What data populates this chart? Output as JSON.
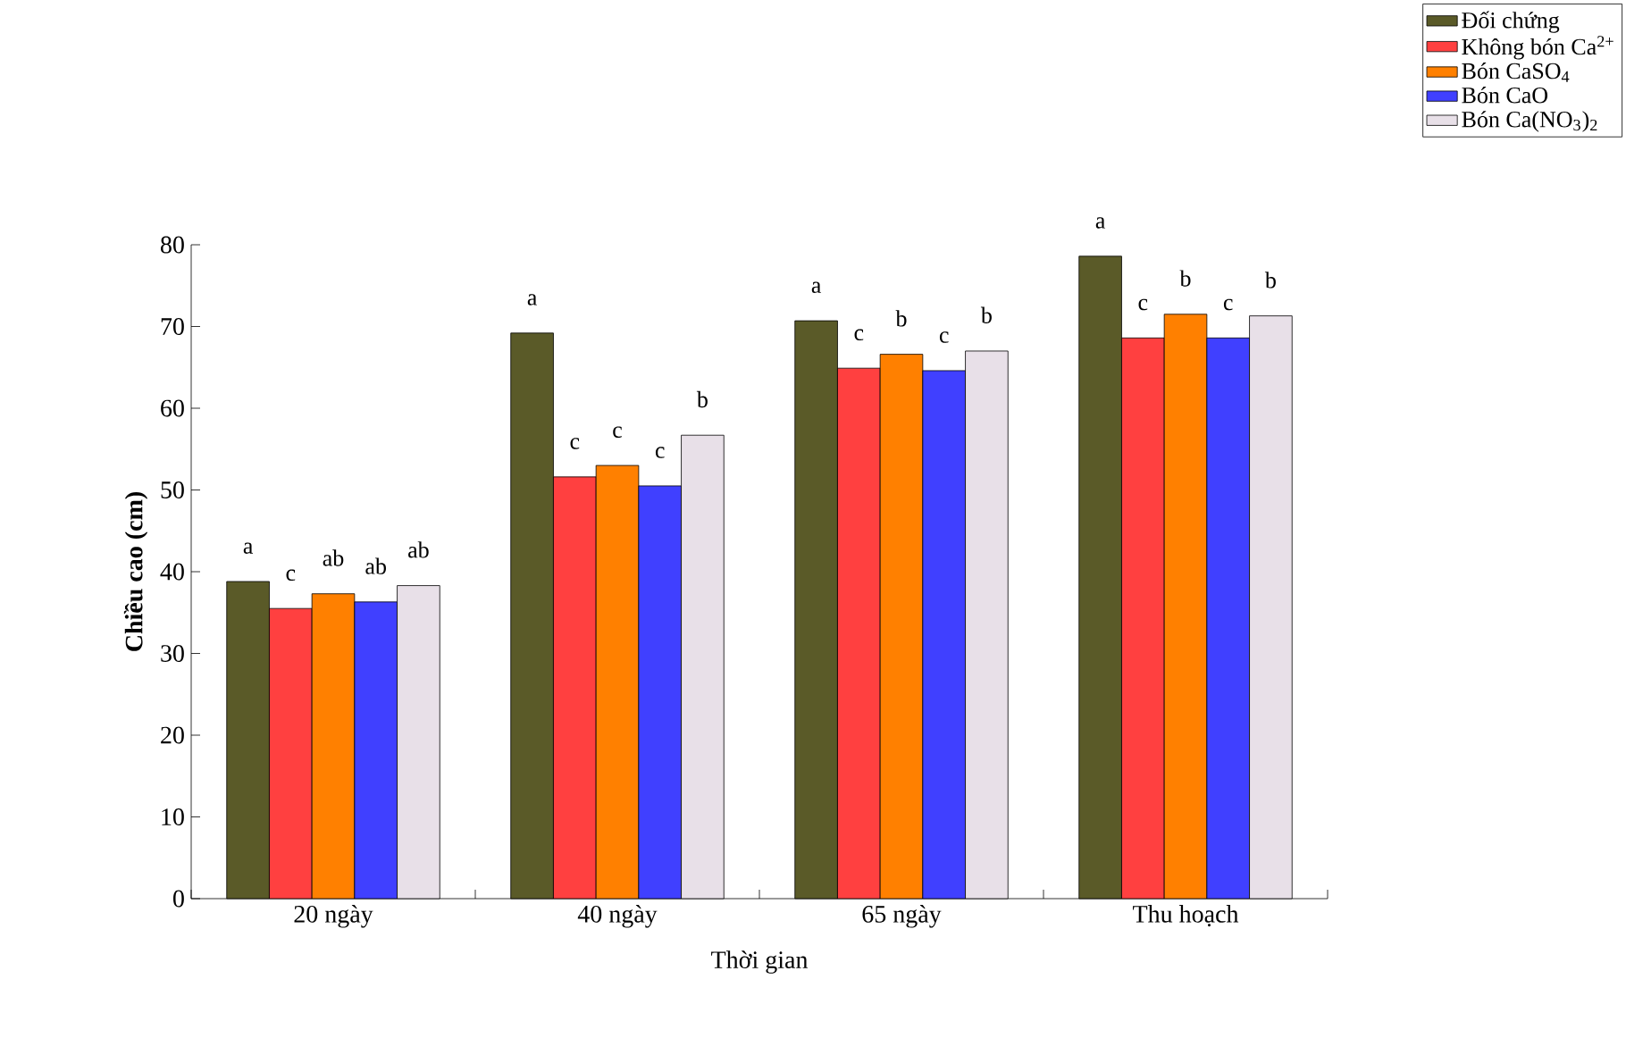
{
  "chart_data": {
    "type": "bar",
    "xlabel": "Thời gian",
    "ylabel": "Chiều cao (cm)",
    "categories": [
      "20 ngày",
      "40 ngày",
      "65 ngày",
      "Thu hoạch"
    ],
    "series": [
      {
        "name": "Đối chứng",
        "color": "#5a5a28",
        "values": [
          38.8,
          69.2,
          70.7,
          78.6
        ],
        "value_labels": [
          "a",
          "a",
          "a",
          "a"
        ]
      },
      {
        "name": "Không bón Ca$^{2+}$",
        "color": "#ff4040",
        "values": [
          35.5,
          51.6,
          64.9,
          68.6
        ],
        "value_labels": [
          "c",
          "c",
          "c",
          "c"
        ]
      },
      {
        "name": "Bón CaSO$_{4}$",
        "color": "#ff8000",
        "values": [
          37.3,
          53.0,
          66.6,
          71.5
        ],
        "value_labels": [
          "ab",
          "c",
          "b",
          "b"
        ]
      },
      {
        "name": "Bón CaO",
        "color": "#4040ff",
        "values": [
          36.3,
          50.5,
          64.6,
          68.6
        ],
        "value_labels": [
          "ab",
          "c",
          "c",
          "c"
        ]
      },
      {
        "name": "Bón Ca(NO$_{3}$)$_{2}$",
        "color": "#e8e0e8",
        "values": [
          38.3,
          56.7,
          67.0,
          71.3
        ],
        "value_labels": [
          "ab",
          "b",
          "b",
          "b"
        ]
      }
    ],
    "ylim": [
      0,
      80
    ],
    "yticks": [
      0,
      10,
      20,
      30,
      40,
      50,
      60,
      70,
      80
    ],
    "legend": "top right",
    "grid": false
  }
}
